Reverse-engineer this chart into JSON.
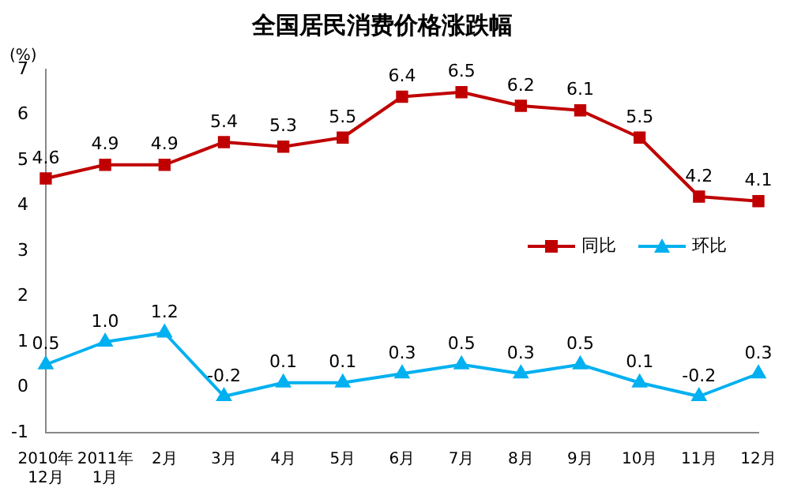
{
  "chart_data": {
    "type": "line",
    "title": "全国居民消费价格涨跌幅",
    "ylabel": "(%)",
    "categories": [
      "2010年\n12月",
      "2011年\n1月",
      "2月",
      "3月",
      "4月",
      "5月",
      "6月",
      "7月",
      "8月",
      "9月",
      "10月",
      "11月",
      "12月"
    ],
    "series": [
      {
        "name": "同比",
        "color": "#c00000",
        "marker": "square",
        "values": [
          4.6,
          4.9,
          4.9,
          5.4,
          5.3,
          5.5,
          6.4,
          6.5,
          6.2,
          6.1,
          5.5,
          4.2,
          4.1
        ],
        "value_labels": [
          "4.6",
          "4.9",
          "4.9",
          "5.4",
          "5.3",
          "5.5",
          "6.4",
          "6.5",
          "6.2",
          "6.1",
          "5.5",
          "4.2",
          "4.1"
        ]
      },
      {
        "name": "环比",
        "color": "#00b0f0",
        "marker": "triangle",
        "values": [
          0.5,
          1.0,
          1.2,
          -0.2,
          0.1,
          0.1,
          0.3,
          0.5,
          0.3,
          0.5,
          0.1,
          -0.2,
          0.3
        ],
        "value_labels": [
          "0.5",
          "1.0",
          "1.2",
          "-0.2",
          "0.1",
          "0.1",
          "0.3",
          "0.5",
          "0.3",
          "0.5",
          "0.1",
          "-0.2",
          "0.3"
        ]
      }
    ],
    "ylim": [
      -1,
      7
    ],
    "yticks": [
      -1,
      0,
      1,
      2,
      3,
      4,
      5,
      6,
      7
    ],
    "grid": false,
    "legend": "right"
  }
}
